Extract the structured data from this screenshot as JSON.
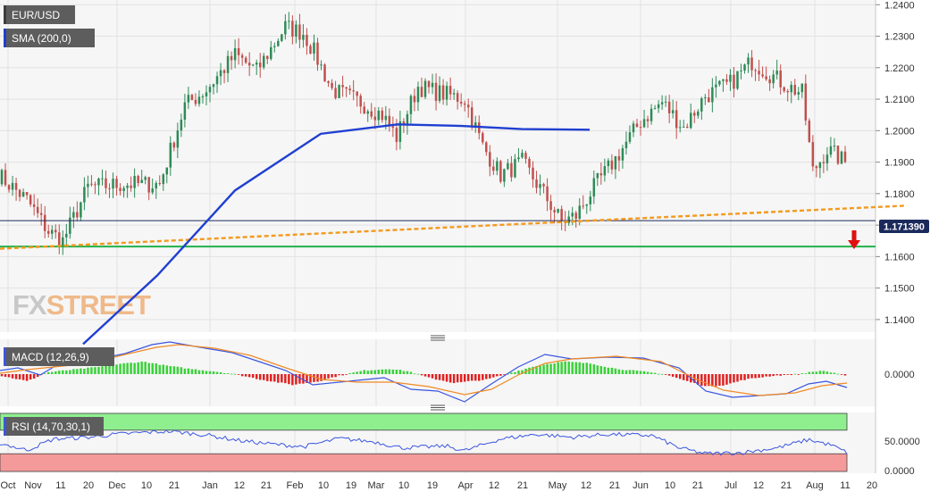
{
  "tags": {
    "symbol": "EUR/USD",
    "sma": "SMA (200,0)",
    "macd": "MACD (12,26,9)",
    "rsi": "RSI (14,70,30,1)"
  },
  "last_price": "1.171390",
  "watermark": {
    "fx": "FX",
    "street": "STREET"
  },
  "colors": {
    "bull": "#2e8b57",
    "bear": "#c0504d",
    "sma": "#1f3fd1",
    "trend": "#f39a1e",
    "support": "#22b14c",
    "macd_line": "#3a55e0",
    "signal_line": "#f08a24",
    "hist_pos": "#3ad13a",
    "hist_neg": "#e02020",
    "rsi_line": "#3a55e0",
    "rsi_overbought_zone": "#8fef8f",
    "rsi_oversold_zone": "#f59a9a",
    "arrow": "#e01010"
  },
  "x_labels": [
    "Oct",
    "Nov",
    "11",
    "20",
    "Dec",
    "10",
    "21",
    "Jan",
    "12",
    "21",
    "Feb",
    "10",
    "19",
    "Mar",
    "10",
    "19",
    "Apr",
    "12",
    "21",
    "May",
    "12",
    "21",
    "Jun",
    "10",
    "21",
    "Jul",
    "12",
    "21",
    "Aug",
    "11",
    "20"
  ],
  "chart_data": [
    {
      "type": "candlestick",
      "series": [
        {
          "name": "EUR/USD"
        },
        {
          "name": "SMA (200,0)"
        }
      ],
      "y_ticks": [
        "1.1400",
        "1.1500",
        "1.1600",
        "1.1700",
        "1.1800",
        "1.1900",
        "1.2000",
        "1.2100",
        "1.2200",
        "1.2300",
        "1.2400"
      ],
      "ylim": [
        1.136,
        1.2415
      ],
      "n_sessions": 236,
      "key_closes": [
        [
          0,
          1.186
        ],
        [
          8,
          1.178
        ],
        [
          14,
          1.168
        ],
        [
          18,
          1.165
        ],
        [
          25,
          1.182
        ],
        [
          35,
          1.183
        ],
        [
          45,
          1.183
        ],
        [
          52,
          1.208
        ],
        [
          58,
          1.213
        ],
        [
          66,
          1.224
        ],
        [
          72,
          1.219
        ],
        [
          80,
          1.233
        ],
        [
          85,
          1.231
        ],
        [
          88,
          1.225
        ],
        [
          93,
          1.213
        ],
        [
          101,
          1.209
        ],
        [
          107,
          1.205
        ],
        [
          111,
          1.198
        ],
        [
          117,
          1.214
        ],
        [
          123,
          1.212
        ],
        [
          130,
          1.21
        ],
        [
          135,
          1.195
        ],
        [
          140,
          1.186
        ],
        [
          146,
          1.19
        ],
        [
          152,
          1.18
        ],
        [
          157,
          1.171
        ],
        [
          161,
          1.173
        ],
        [
          166,
          1.182
        ],
        [
          172,
          1.191
        ],
        [
          179,
          1.203
        ],
        [
          185,
          1.209
        ],
        [
          191,
          1.201
        ],
        [
          197,
          1.211
        ],
        [
          204,
          1.215
        ],
        [
          210,
          1.222
        ],
        [
          215,
          1.218
        ],
        [
          220,
          1.214
        ],
        [
          224,
          1.212
        ],
        [
          227,
          1.187
        ],
        [
          231,
          1.194
        ],
        [
          236,
          1.19
        ]
      ],
      "sma_200": [
        [
          1.1322,
          93
        ],
        [
          1.154,
          176
        ],
        [
          1.181,
          263
        ],
        [
          1.199,
          359
        ],
        [
          1.202,
          445
        ],
        [
          1.2015,
          517
        ],
        [
          1.2005,
          584
        ],
        [
          1.2003,
          660
        ]
      ],
      "trendline": [
        [
          1.1625,
          0
        ],
        [
          1.1762,
          1015
        ]
      ],
      "support": 1.1632,
      "last_price_line": 1.1714
    },
    {
      "type": "line",
      "series": [
        {
          "name": "MACD (12,26,9)"
        }
      ],
      "y_ticks": [
        "0.0000"
      ],
      "ylim": [
        -0.01,
        0.01
      ]
    },
    {
      "type": "line",
      "series": [
        {
          "name": "RSI (14,70,30,1)"
        }
      ],
      "y_ticks": [
        "50.0000",
        "0.0000"
      ],
      "ylim": [
        0,
        100
      ],
      "overbought": 70,
      "oversold": 30
    }
  ]
}
